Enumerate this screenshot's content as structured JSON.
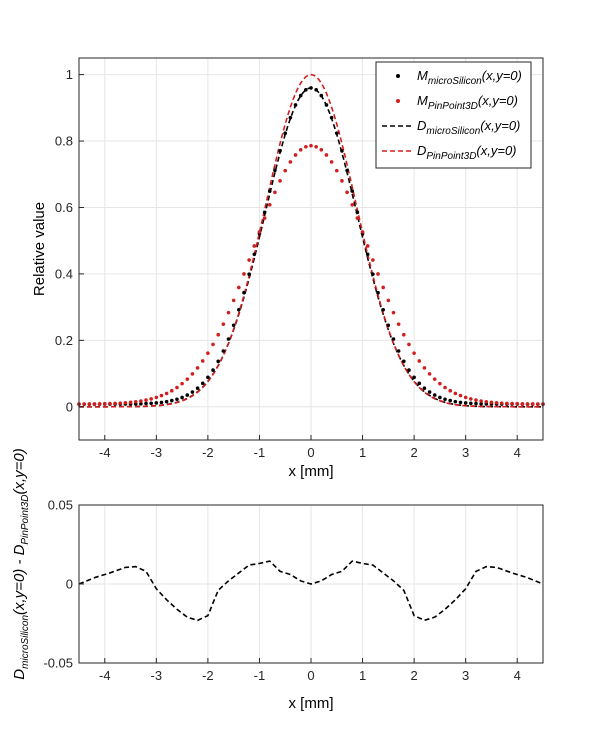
{
  "chart_data": [
    {
      "type": "scatter",
      "xlabel": "x [mm]",
      "ylabel": "Relative value",
      "xlim": [
        -4.5,
        4.5
      ],
      "ylim": [
        -0.1,
        1.05
      ],
      "xticks": [
        "-4",
        "-3",
        "-2",
        "-1",
        "0",
        "1",
        "2",
        "3",
        "4"
      ],
      "yticks": [
        "0",
        "0.2",
        "0.4",
        "0.6",
        "0.8",
        "1"
      ],
      "grid": true,
      "legend_position": "top-right",
      "series": [
        {
          "name": "M_microSilicon(x,y=0)",
          "legend_main": "M",
          "legend_sub": "microSilicon",
          "legend_args": "(x,y=0)",
          "style": "dots",
          "color": "#000000",
          "peak": 0.96,
          "sigma": 0.9,
          "base": 0.008
        },
        {
          "name": "M_PinPoint3D(x,y=0)",
          "legend_main": "M",
          "legend_sub": "PinPoint3D",
          "legend_args": "(x,y=0)",
          "style": "dots",
          "color": "#d11f1f",
          "peak": 0.786,
          "sigma": 1.11,
          "base": 0.008
        },
        {
          "name": "D_microSilicon(x,y=0)",
          "legend_main": "D",
          "legend_sub": "microSilicon",
          "legend_args": "(x,y=0)",
          "style": "dashed",
          "color": "#000000",
          "peak": 0.96,
          "sigma": 0.89,
          "base": 0.0
        },
        {
          "name": "D_PinPoint3D(x,y=0)",
          "legend_main": "D",
          "legend_sub": "PinPoint3D",
          "legend_args": "(x,y=0)",
          "style": "dashed",
          "color": "#d11f1f",
          "peak": 1.0,
          "sigma": 0.88,
          "base": 0.0
        }
      ]
    },
    {
      "type": "line",
      "xlabel": "x [mm]",
      "ylabel": "D_microSilicon(x,y=0) - D_PinPoint3D(x,y=0)",
      "ylabel_parts": {
        "a_main": "D",
        "a_sub": "microSilicon",
        "a_args": "(x,y=0) - ",
        "b_main": "D",
        "b_sub": "PinPoint3D",
        "b_args": "(x,y=0)"
      },
      "xlim": [
        -4.5,
        4.5
      ],
      "ylim": [
        -0.05,
        0.05
      ],
      "xticks": [
        "-4",
        "-3",
        "-2",
        "-1",
        "0",
        "1",
        "2",
        "3",
        "4"
      ],
      "yticks": [
        "-0.05",
        "0",
        "0.05"
      ],
      "grid": true,
      "series": [
        {
          "style": "dashed",
          "color": "#000000",
          "x": [
            -4.5,
            -4.2,
            -3.9,
            -3.6,
            -3.4,
            -3.2,
            -3.0,
            -2.8,
            -2.6,
            -2.4,
            -2.2,
            -2.0,
            -1.8,
            -1.6,
            -1.4,
            -1.2,
            -1.0,
            -0.8,
            -0.6,
            -0.4,
            -0.2,
            0.0,
            0.2,
            0.4,
            0.6,
            0.8,
            1.0,
            1.2,
            1.4,
            1.6,
            1.8,
            2.0,
            2.2,
            2.4,
            2.6,
            2.8,
            3.0,
            3.2,
            3.4,
            3.6,
            3.9,
            4.2,
            4.5
          ],
          "y": [
            0.0,
            0.004,
            0.007,
            0.0105,
            0.011,
            0.008,
            -0.003,
            -0.01,
            -0.016,
            -0.021,
            -0.023,
            -0.02,
            -0.004,
            0.002,
            0.007,
            0.012,
            0.013,
            0.0145,
            0.008,
            0.006,
            0.002,
            0.0,
            0.002,
            0.006,
            0.008,
            0.0145,
            0.013,
            0.012,
            0.007,
            0.002,
            -0.004,
            -0.02,
            -0.023,
            -0.021,
            -0.016,
            -0.01,
            -0.003,
            0.008,
            0.011,
            0.0105,
            0.007,
            0.004,
            0.0
          ]
        }
      ]
    }
  ]
}
